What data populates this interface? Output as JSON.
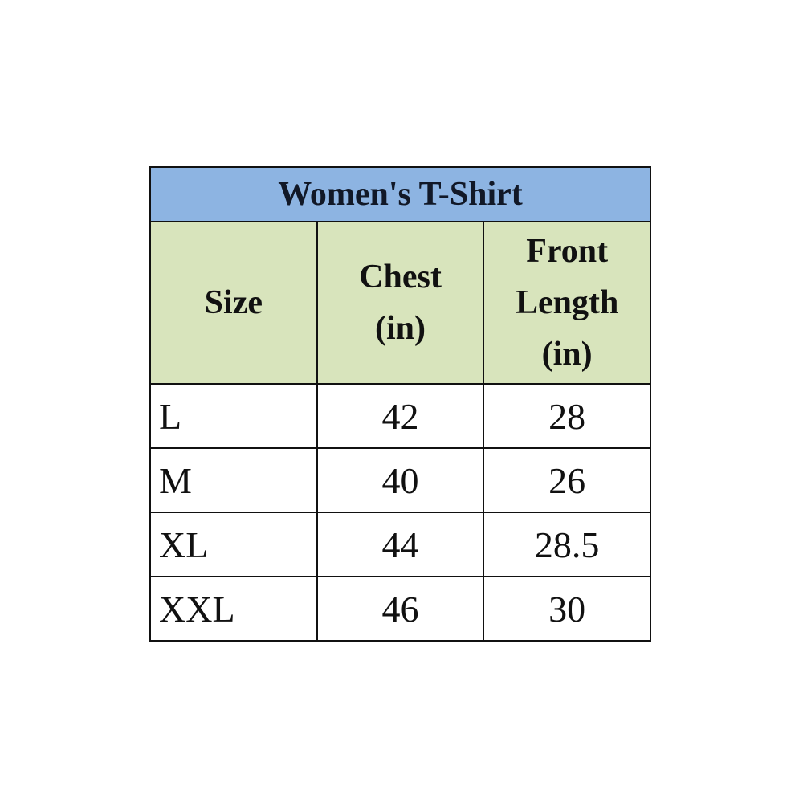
{
  "title": "Women's T-Shirt",
  "colors": {
    "title_bg": "#8db4e2",
    "header_bg": "#d8e4bc"
  },
  "headers": [
    "Size",
    "Chest (in)",
    "Front Length (in)"
  ],
  "header_lines": [
    [
      "Size"
    ],
    [
      "Chest",
      "(in)"
    ],
    [
      "Front",
      "Length",
      "(in)"
    ]
  ],
  "rows": [
    [
      "L",
      "42",
      "28"
    ],
    [
      "M",
      "40",
      "26"
    ],
    [
      "XL",
      "44",
      "28.5"
    ],
    [
      "XXL",
      "46",
      "30"
    ]
  ]
}
